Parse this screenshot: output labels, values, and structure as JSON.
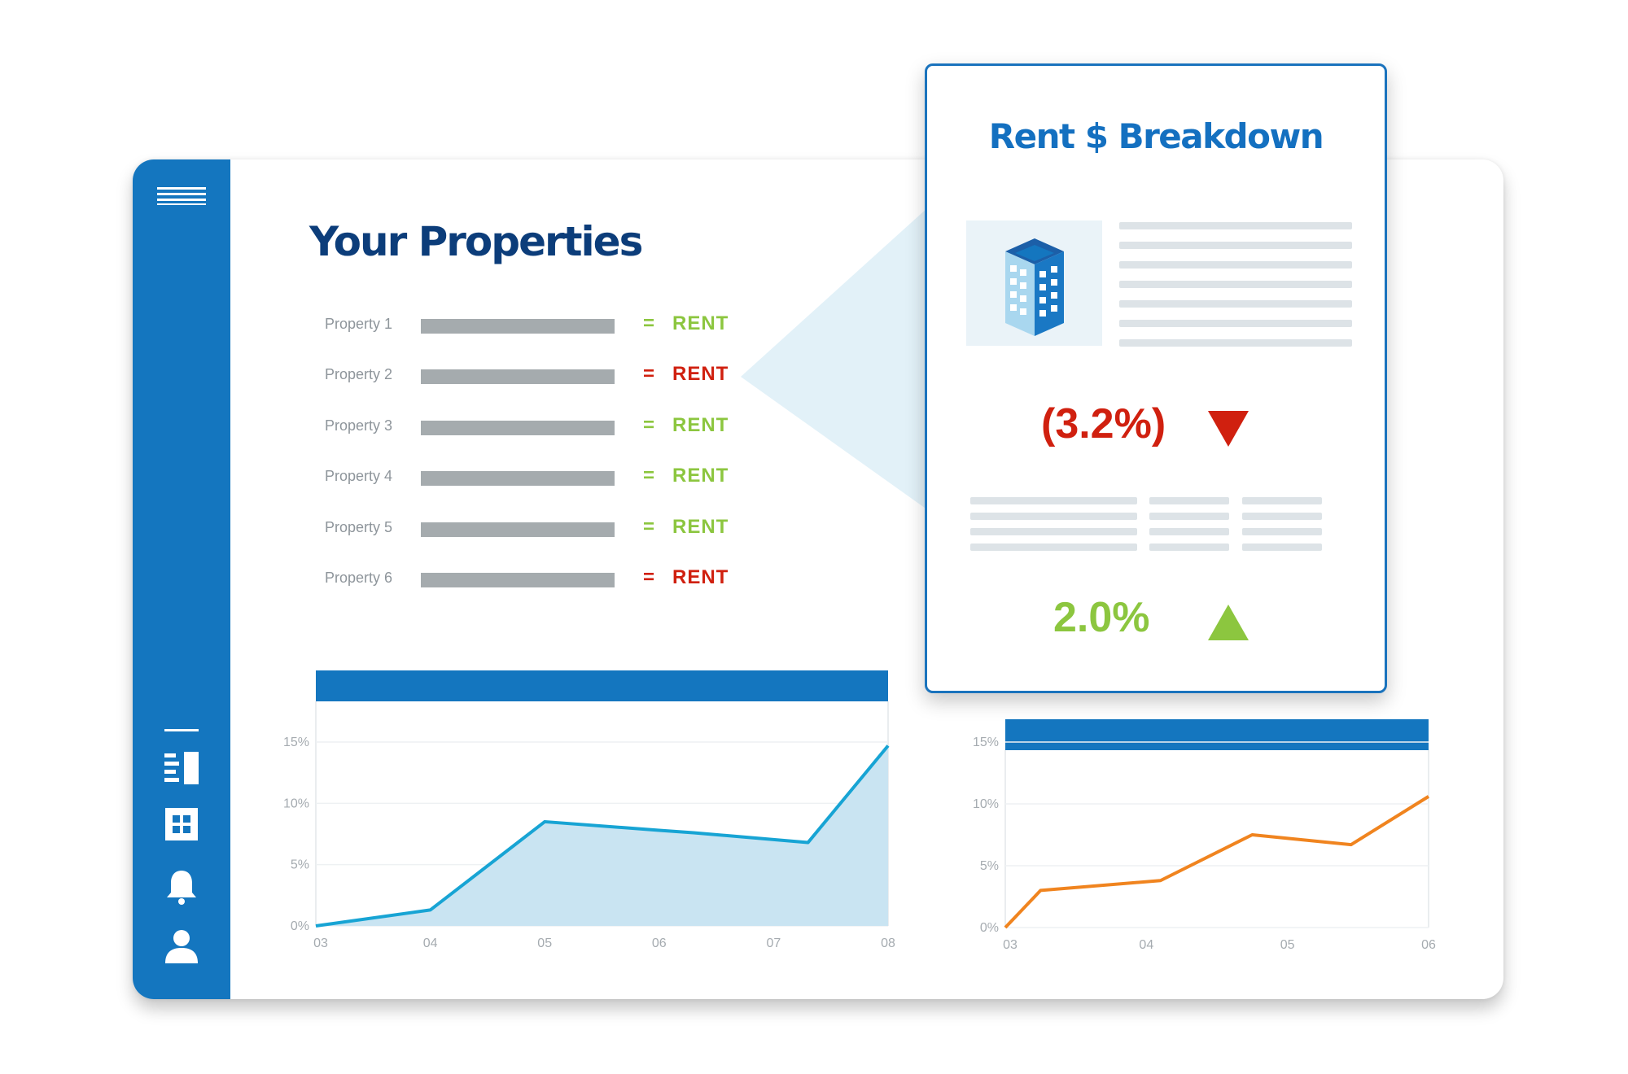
{
  "page": {
    "title": "Your Properties"
  },
  "properties": [
    {
      "label": "Property 1",
      "eq": "=",
      "value": "RENT",
      "status": "up",
      "color": "#8cc63f"
    },
    {
      "label": "Property 2",
      "eq": "=",
      "value": "RENT",
      "status": "down",
      "color": "#d0200f"
    },
    {
      "label": "Property 3",
      "eq": "=",
      "value": "RENT",
      "status": "up",
      "color": "#8cc63f"
    },
    {
      "label": "Property 4",
      "eq": "=",
      "value": "RENT",
      "status": "up",
      "color": "#8cc63f"
    },
    {
      "label": "Property 5",
      "eq": "=",
      "value": "RENT",
      "status": "up",
      "color": "#8cc63f"
    },
    {
      "label": "Property 6",
      "eq": "=",
      "value": "RENT",
      "status": "down",
      "color": "#d0200f"
    }
  ],
  "sidebar": {
    "icons": [
      "menu-icon",
      "report-icon",
      "grid-icon",
      "bell-icon",
      "user-icon"
    ]
  },
  "card": {
    "title": "Rent $ Breakdown",
    "image_icon": "building-icon",
    "decrease": {
      "value": "(3.2%)",
      "icon": "triangle-down-icon",
      "color": "#d0200f"
    },
    "increase": {
      "value": "2.0%",
      "icon": "triangle-up-icon",
      "color": "#8cc63f"
    }
  },
  "colors": {
    "brand": "#1476bf",
    "title": "#0c3d7a",
    "positive": "#8cc63f",
    "negative": "#d0200f",
    "line_blue": "#17a4d4",
    "line_orange": "#f0841f"
  },
  "chart_data": [
    {
      "type": "area",
      "x": [
        "03",
        "04",
        "05",
        "06",
        "07",
        "08"
      ],
      "y_ticks": [
        "0%",
        "5%",
        "10%",
        "15%"
      ],
      "ylim": [
        0,
        15
      ],
      "grid": true,
      "series": [
        {
          "points": [
            [
              0,
              0
            ],
            [
              1,
              1.3
            ],
            [
              2,
              8.5
            ],
            [
              3,
              7.8
            ],
            [
              3.3,
              7.6
            ],
            [
              4.3,
              6.8
            ],
            [
              5,
              14.7
            ]
          ]
        }
      ]
    },
    {
      "type": "line",
      "x": [
        "03",
        "04",
        "05",
        "06"
      ],
      "y_ticks": [
        "0%",
        "5%",
        "10%",
        "15%"
      ],
      "ylim": [
        0,
        15
      ],
      "grid": true,
      "series": [
        {
          "points": [
            [
              0,
              0
            ],
            [
              0.25,
              3.0
            ],
            [
              1.1,
              3.8
            ],
            [
              1.75,
              7.5
            ],
            [
              2.45,
              6.7
            ],
            [
              3,
              10.6
            ]
          ]
        }
      ]
    }
  ]
}
